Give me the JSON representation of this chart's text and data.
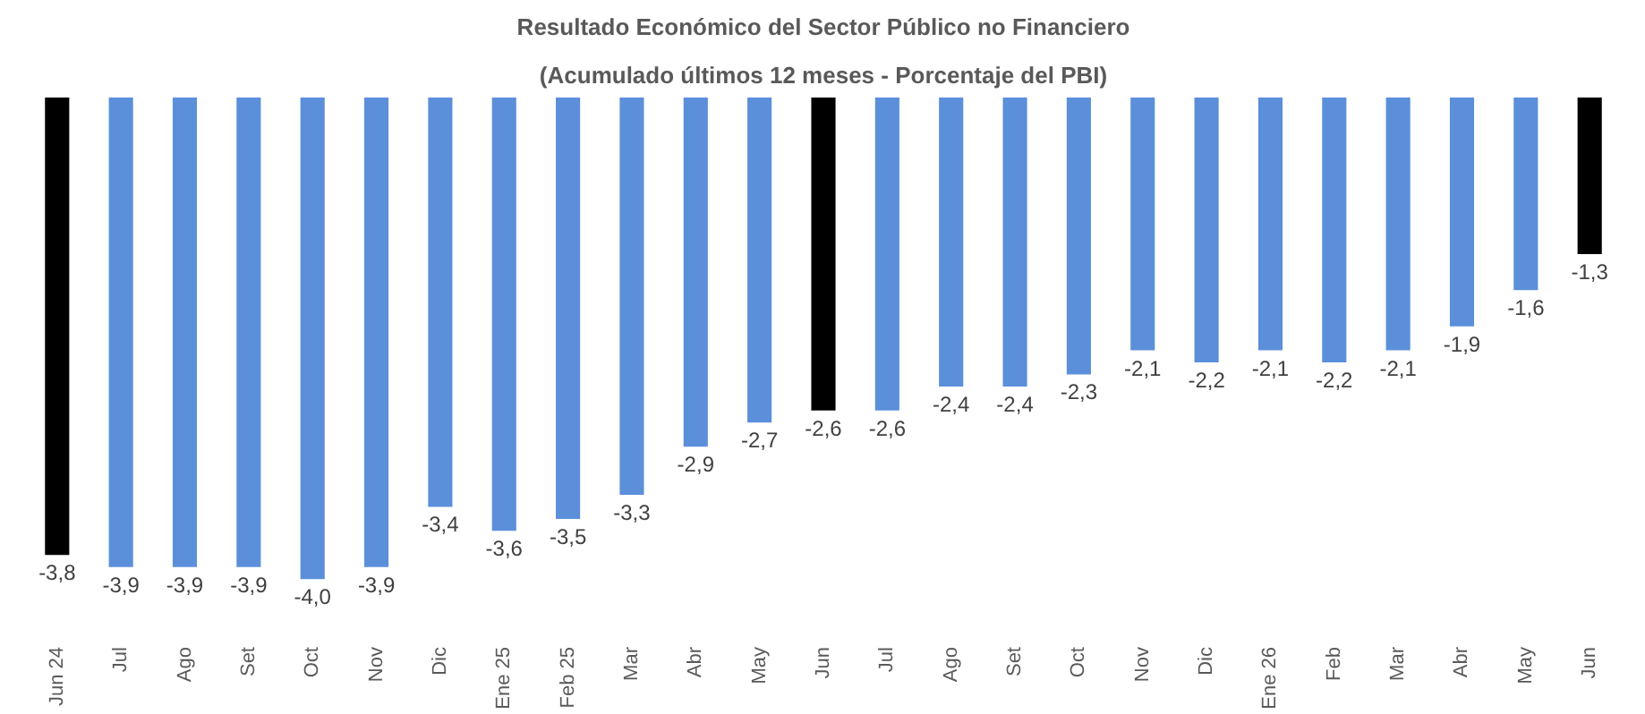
{
  "chart_data": {
    "type": "bar",
    "title": "Resultado Económico del Sector Público no Financiero",
    "subtitle": "(Acumulado últimos 12 meses - Porcentaje del PBI)",
    "categories": [
      "Jun 24",
      "Jul",
      "Ago",
      "Set",
      "Oct",
      "Nov",
      "Dic",
      "Ene 25",
      "Feb 25",
      "Mar",
      "Abr",
      "May",
      "Jun",
      "Jul",
      "Ago",
      "Set",
      "Oct",
      "Nov",
      "Dic",
      "Ene 26",
      "Feb",
      "Mar",
      "Abr",
      "May",
      "Jun"
    ],
    "values": [
      -3.8,
      -3.9,
      -3.9,
      -3.9,
      -4.0,
      -3.9,
      -3.4,
      -3.6,
      -3.5,
      -3.3,
      -2.9,
      -2.7,
      -2.6,
      -2.6,
      -2.4,
      -2.4,
      -2.3,
      -2.1,
      -2.2,
      -2.1,
      -2.2,
      -2.1,
      -1.9,
      -1.6,
      -1.3
    ],
    "value_labels": [
      "-3,8",
      "-3,9",
      "-3,9",
      "-3,9",
      "-4,0",
      "-3,9",
      "-3,4",
      "-3,6",
      "-3,5",
      "-3,3",
      "-2,9",
      "-2,7",
      "-2,6",
      "-2,6",
      "-2,4",
      "-2,4",
      "-2,3",
      "-2,1",
      "-2,2",
      "-2,1",
      "-2,2",
      "-2,1",
      "-1,9",
      "-1,6",
      "-1,3"
    ],
    "colors": [
      "#000000",
      "#5b8fd9",
      "#5b8fd9",
      "#5b8fd9",
      "#5b8fd9",
      "#5b8fd9",
      "#5b8fd9",
      "#5b8fd9",
      "#5b8fd9",
      "#5b8fd9",
      "#5b8fd9",
      "#5b8fd9",
      "#000000",
      "#5b8fd9",
      "#5b8fd9",
      "#5b8fd9",
      "#5b8fd9",
      "#5b8fd9",
      "#5b8fd9",
      "#5b8fd9",
      "#5b8fd9",
      "#5b8fd9",
      "#5b8fd9",
      "#5b8fd9",
      "#000000"
    ]
  }
}
